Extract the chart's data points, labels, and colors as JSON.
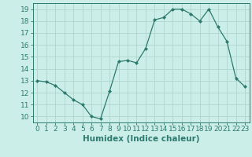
{
  "x": [
    0,
    1,
    2,
    3,
    4,
    5,
    6,
    7,
    8,
    9,
    10,
    11,
    12,
    13,
    14,
    15,
    16,
    17,
    18,
    19,
    20,
    21,
    22,
    23
  ],
  "y": [
    13,
    12.9,
    12.6,
    12.0,
    11.4,
    11.0,
    10.0,
    9.8,
    12.1,
    14.6,
    14.7,
    14.5,
    15.7,
    18.1,
    18.3,
    19.0,
    19.0,
    18.6,
    18.0,
    19.0,
    17.5,
    16.3,
    13.2,
    12.5
  ],
  "line_color": "#2d7a6e",
  "marker": "D",
  "marker_size": 2.0,
  "bg_color": "#cceee8",
  "grid_color": "#b0d4ce",
  "xlabel": "Humidex (Indice chaleur)",
  "xlim": [
    -0.5,
    23.5
  ],
  "ylim": [
    9.5,
    19.5
  ],
  "yticks": [
    10,
    11,
    12,
    13,
    14,
    15,
    16,
    17,
    18,
    19
  ],
  "xticks": [
    0,
    1,
    2,
    3,
    4,
    5,
    6,
    7,
    8,
    9,
    10,
    11,
    12,
    13,
    14,
    15,
    16,
    17,
    18,
    19,
    20,
    21,
    22,
    23
  ],
  "tick_label_size": 6.5,
  "xlabel_size": 7.5
}
